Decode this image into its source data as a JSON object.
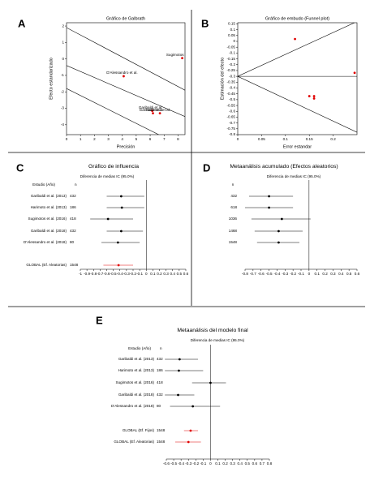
{
  "chart_data": [
    {
      "type": "galbraith",
      "panel": "A",
      "title": "Gráfico de Galbrath",
      "x_label": "Precisión",
      "y_label": "Efecto estandarizado",
      "xlim": [
        0,
        8.5
      ],
      "xticks": [
        0,
        1,
        2,
        3,
        4,
        5,
        6,
        7,
        8
      ],
      "ylim": [
        -4.6,
        2.2
      ],
      "yticks": [
        2,
        1,
        0,
        -1,
        -2,
        -3,
        -4
      ],
      "color": "#e00000",
      "points": [
        {
          "label": "Sugimotos",
          "x": 8.3,
          "y": 0.05
        },
        {
          "label": "D'Alessandro et al.",
          "x": 4.1,
          "y": -1.05
        },
        {
          "label": "Garibaldi et al.",
          "x": 6.15,
          "y": -3.15
        },
        {
          "label": "Garibaldi et al.",
          "x": 6.2,
          "y": -3.3
        },
        {
          "label": "Harimoto et al.",
          "x": 6.7,
          "y": -3.3
        }
      ],
      "lines": [
        {
          "x": [
            0,
            8.5
          ],
          "y": [
            1.9,
            -1.9
          ]
        },
        {
          "x": [
            0,
            8.5
          ],
          "y": [
            -0.4,
            -3.5
          ]
        },
        {
          "x": [
            0,
            8.5
          ],
          "y": [
            -1.8,
            -5.4
          ]
        }
      ]
    },
    {
      "type": "funnel",
      "panel": "B",
      "title": "Gráfico de embudo (Funnel plot)",
      "x_label": "Error estandar",
      "y_label": "Estimación del efecto",
      "xlim": [
        0,
        0.25
      ],
      "xticks": [
        0,
        0.05,
        0.1,
        0.15,
        0.2
      ],
      "ylim": [
        -0.8,
        0.16
      ],
      "yticks": [
        0.15,
        0.1,
        0.05,
        0,
        -0.05,
        -0.1,
        -0.15,
        -0.2,
        -0.25,
        -0.3,
        -0.35,
        -0.4,
        -0.45,
        -0.5,
        -0.55,
        -0.6,
        -0.65,
        -0.7,
        -0.75,
        -0.8
      ],
      "color": "#e00000",
      "points": [
        {
          "x": 0.12,
          "y": 0.02
        },
        {
          "x": 0.245,
          "y": -0.27
        },
        {
          "x": 0.15,
          "y": -0.47
        },
        {
          "x": 0.16,
          "y": -0.47
        },
        {
          "x": 0.16,
          "y": -0.49
        }
      ],
      "lines": [
        {
          "x": [
            0,
            0.25
          ],
          "y": [
            -0.3,
            0.17
          ]
        },
        {
          "x": [
            0,
            0.25
          ],
          "y": [
            -0.3,
            -0.3
          ]
        },
        {
          "x": [
            0,
            0.25
          ],
          "y": [
            -0.3,
            -0.78
          ]
        }
      ]
    },
    {
      "type": "forest",
      "panel": "C",
      "title": "Gráfico de influencia",
      "header": "Diferencia de medias IC (95.0%)",
      "columns": [
        "Estudio (Año)",
        "n"
      ],
      "xlim": [
        -1,
        0.6
      ],
      "xticks": [
        -1,
        -0.9,
        -0.8,
        -0.7,
        -0.6,
        -0.5,
        -0.4,
        -0.3,
        -0.2,
        -0.1,
        0,
        0.1,
        0.2,
        0.3,
        0.4,
        0.5,
        0.6
      ],
      "reference_line": 0,
      "rows": [
        {
          "label": "Garibaldi et al. (2013)",
          "n": 432,
          "value": -0.38,
          "ci": [
            -0.6,
            -0.03
          ],
          "color": "#000000"
        },
        {
          "label": "Harimoto et al. (2013)",
          "n": 186,
          "value": -0.37,
          "ci": [
            -0.6,
            -0.03
          ],
          "color": "#000000"
        },
        {
          "label": "Sugimotos et al. (2016)",
          "n": 418,
          "value": -0.58,
          "ci": [
            -0.85,
            -0.2
          ],
          "color": "#000000"
        },
        {
          "label": "Garibaldi et al. (2018)",
          "n": 432,
          "value": -0.38,
          "ci": [
            -0.6,
            -0.05
          ],
          "color": "#000000"
        },
        {
          "label": "D'Alessandro et al. (2018)",
          "n": 80,
          "value": -0.43,
          "ci": [
            -0.68,
            -0.1
          ],
          "color": "#000000"
        },
        {
          "label": "GLOBAL (Ef. Aleatorias)",
          "n": 1548,
          "value": -0.42,
          "ci": [
            -0.65,
            -0.2
          ],
          "color": "#e00000"
        }
      ]
    },
    {
      "type": "forest",
      "panel": "D",
      "title": "Metaanálisis acumulado (Efectos aleatorios)",
      "header": "Diferencia de medias IC (95.0%)",
      "columns": [
        "n"
      ],
      "xlim": [
        -0.8,
        0.6
      ],
      "xticks": [
        -0.8,
        -0.7,
        -0.6,
        -0.5,
        -0.4,
        -0.3,
        -0.2,
        -0.1,
        0,
        0.1,
        0.2,
        0.3,
        0.4,
        0.5,
        0.6
      ],
      "reference_line": 0,
      "rows": [
        {
          "n": 432,
          "value": -0.5,
          "ci": [
            -0.75,
            -0.2
          ],
          "color": "#000000"
        },
        {
          "n": 618,
          "value": -0.5,
          "ci": [
            -0.8,
            -0.2
          ],
          "color": "#000000"
        },
        {
          "n": 1036,
          "value": -0.34,
          "ci": [
            -0.72,
            0.02
          ],
          "color": "#000000"
        },
        {
          "n": 1468,
          "value": -0.38,
          "ci": [
            -0.68,
            -0.08
          ],
          "color": "#000000"
        },
        {
          "n": 1548,
          "value": -0.38,
          "ci": [
            -0.65,
            -0.12
          ],
          "color": "#000000"
        }
      ]
    },
    {
      "type": "forest",
      "panel": "E",
      "title": "Metaanálisis del modelo final",
      "header": "Diferencia de medias IC (95.0%)",
      "columns": [
        "Estudio (Año)",
        "n"
      ],
      "xlim": [
        -0.6,
        0.8
      ],
      "xticks": [
        -0.6,
        -0.5,
        -0.4,
        -0.3,
        -0.2,
        -0.1,
        0,
        0.1,
        0.2,
        0.3,
        0.4,
        0.5,
        0.6,
        0.7,
        0.8
      ],
      "reference_line": 0,
      "rows": [
        {
          "label": "Garibaldi et al. (2013)",
          "n": 432,
          "value": -0.42,
          "ci": [
            -0.62,
            -0.17
          ],
          "color": "#000000"
        },
        {
          "label": "Harimoto et al. (2013)",
          "n": 186,
          "value": -0.43,
          "ci": [
            -0.62,
            -0.1
          ],
          "color": "#000000"
        },
        {
          "label": "Sugimotos et al. (2016)",
          "n": 418,
          "value": 0,
          "ci": [
            -0.25,
            0.21
          ],
          "color": "#000000"
        },
        {
          "label": "Garibaldi et al. (2018)",
          "n": 432,
          "value": -0.44,
          "ci": [
            -0.62,
            -0.22
          ],
          "color": "#000000"
        },
        {
          "label": "D'Alessandro et al. (2018)",
          "n": 80,
          "value": -0.24,
          "ci": [
            -0.55,
            0.13
          ],
          "color": "#000000"
        },
        {
          "label": "GLOBAL (Ef. Fijos)",
          "n": 1548,
          "value": -0.27,
          "ci": [
            -0.36,
            -0.17
          ],
          "color": "#e00000"
        },
        {
          "label": "GLOBAL (Ef. Aleatorias)",
          "n": 1548,
          "value": -0.3,
          "ci": [
            -0.48,
            -0.13
          ],
          "color": "#e00000"
        }
      ]
    }
  ]
}
